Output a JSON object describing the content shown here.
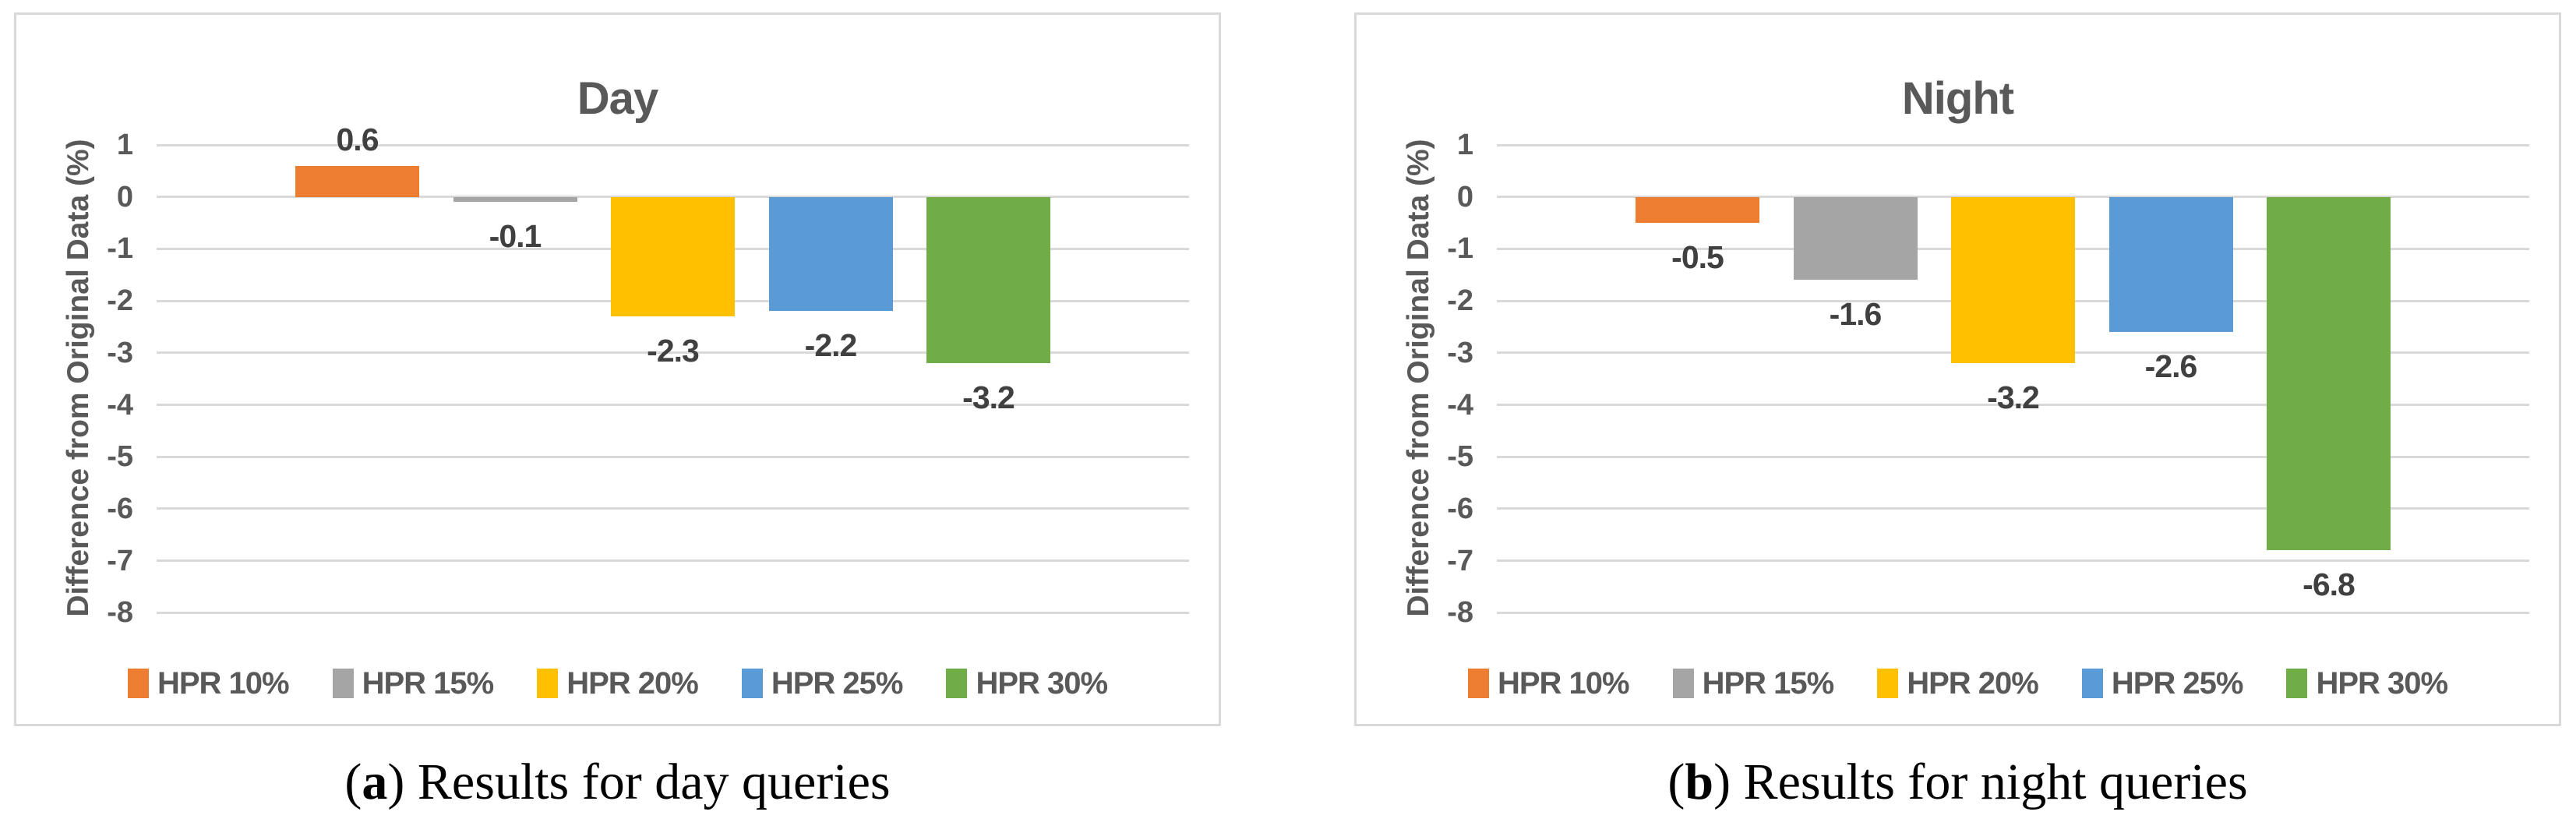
{
  "figure_title": "",
  "chart_data": [
    {
      "type": "bar",
      "title": "Day",
      "ylabel": "Difference from Original Data (%)",
      "ylim": [
        -8,
        1
      ],
      "yticks": [
        1,
        0,
        -1,
        -2,
        -3,
        -4,
        -5,
        -6,
        -7,
        -8
      ],
      "grid": true,
      "legend_position": "bottom",
      "categories": [
        "HPR 10%",
        "HPR 15%",
        "HPR 20%",
        "HPR 25%",
        "HPR 30%"
      ],
      "series": [
        {
          "name": "HPR 10%",
          "value": 0.6,
          "label": "0.6",
          "color": "#ED7D31"
        },
        {
          "name": "HPR 15%",
          "value": -0.1,
          "label": "-0.1",
          "color": "#A5A5A5"
        },
        {
          "name": "HPR 20%",
          "value": -2.3,
          "label": "-2.3",
          "color": "#FFC000"
        },
        {
          "name": "HPR 25%",
          "value": -2.2,
          "label": "-2.2",
          "color": "#5B9BD5"
        },
        {
          "name": "HPR 30%",
          "value": -3.2,
          "label": "-3.2",
          "color": "#70AD47"
        }
      ]
    },
    {
      "type": "bar",
      "title": "Night",
      "ylabel": "Difference from Original Data (%)",
      "ylim": [
        -8,
        1
      ],
      "yticks": [
        1,
        0,
        -1,
        -2,
        -3,
        -4,
        -5,
        -6,
        -7,
        -8
      ],
      "grid": true,
      "legend_position": "bottom",
      "categories": [
        "HPR 10%",
        "HPR 15%",
        "HPR 20%",
        "HPR 25%",
        "HPR 30%"
      ],
      "series": [
        {
          "name": "HPR 10%",
          "value": -0.5,
          "label": "-0.5",
          "color": "#ED7D31"
        },
        {
          "name": "HPR 15%",
          "value": -1.6,
          "label": "-1.6",
          "color": "#A5A5A5"
        },
        {
          "name": "HPR 20%",
          "value": -3.2,
          "label": "-3.2",
          "color": "#FFC000"
        },
        {
          "name": "HPR 25%",
          "value": -2.6,
          "label": "-2.6",
          "color": "#5B9BD5"
        },
        {
          "name": "HPR 30%",
          "value": -6.8,
          "label": "-6.8",
          "color": "#70AD47"
        }
      ]
    }
  ],
  "captions": [
    {
      "label": "a",
      "text": "Results for day queries"
    },
    {
      "label": "b",
      "text": "Results for night queries"
    }
  ],
  "colors": {
    "text": "#595959",
    "data_label": "#404040",
    "gridline": "#D9D9D9",
    "panel_border": "#D9D9D9",
    "bars": [
      "#ED7D31",
      "#A5A5A5",
      "#FFC000",
      "#5B9BD5",
      "#70AD47"
    ]
  }
}
